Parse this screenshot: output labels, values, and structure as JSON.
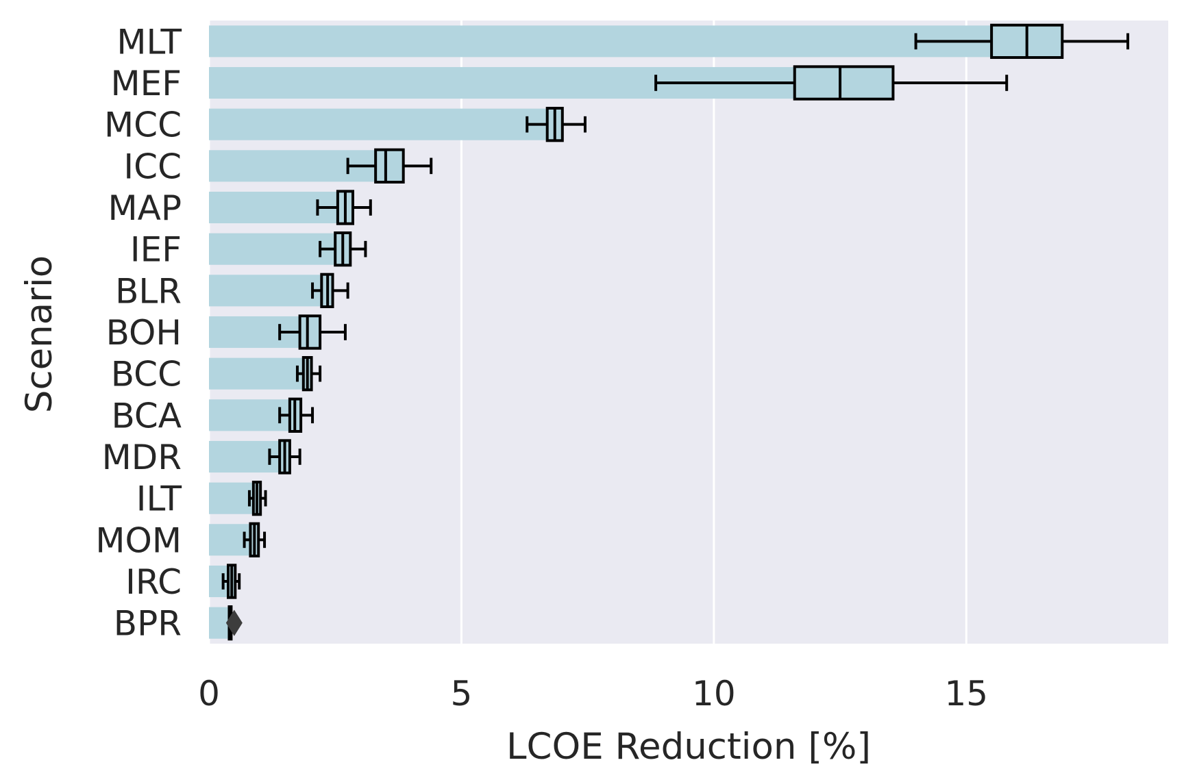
{
  "chart_data": {
    "type": "bar",
    "orientation": "horizontal",
    "categories": [
      "MLT",
      "MEF",
      "MCC",
      "ICC",
      "MAP",
      "IEF",
      "BLR",
      "BOH",
      "BCC",
      "BCA",
      "MDR",
      "ILT",
      "MOM",
      "IRC",
      "BPR"
    ],
    "values": [
      16.2,
      12.5,
      6.85,
      3.5,
      2.7,
      2.65,
      2.35,
      1.95,
      1.95,
      1.7,
      1.5,
      0.95,
      0.9,
      0.45,
      0.42
    ],
    "boxes": [
      {
        "whisker_low": 14.0,
        "q1": 15.5,
        "median": 16.2,
        "q3": 16.9,
        "whisker_high": 18.2
      },
      {
        "whisker_low": 8.85,
        "q1": 11.6,
        "median": 12.5,
        "q3": 13.55,
        "whisker_high": 15.8
      },
      {
        "whisker_low": 6.3,
        "q1": 6.7,
        "median": 6.85,
        "q3": 7.0,
        "whisker_high": 7.45
      },
      {
        "whisker_low": 2.75,
        "q1": 3.3,
        "median": 3.5,
        "q3": 3.85,
        "whisker_high": 4.4
      },
      {
        "whisker_low": 2.15,
        "q1": 2.55,
        "median": 2.7,
        "q3": 2.85,
        "whisker_high": 3.2
      },
      {
        "whisker_low": 2.2,
        "q1": 2.5,
        "median": 2.65,
        "q3": 2.8,
        "whisker_high": 3.1
      },
      {
        "whisker_low": 2.05,
        "q1": 2.23,
        "median": 2.35,
        "q3": 2.45,
        "whisker_high": 2.75
      },
      {
        "whisker_low": 1.4,
        "q1": 1.8,
        "median": 1.95,
        "q3": 2.2,
        "whisker_high": 2.7
      },
      {
        "whisker_low": 1.75,
        "q1": 1.87,
        "median": 1.95,
        "q3": 2.03,
        "whisker_high": 2.2
      },
      {
        "whisker_low": 1.4,
        "q1": 1.6,
        "median": 1.7,
        "q3": 1.82,
        "whisker_high": 2.05
      },
      {
        "whisker_low": 1.2,
        "q1": 1.4,
        "median": 1.5,
        "q3": 1.6,
        "whisker_high": 1.8
      },
      {
        "whisker_low": 0.8,
        "q1": 0.88,
        "median": 0.95,
        "q3": 1.02,
        "whisker_high": 1.12
      },
      {
        "whisker_low": 0.7,
        "q1": 0.82,
        "median": 0.9,
        "q3": 0.98,
        "whisker_high": 1.1
      },
      {
        "whisker_low": 0.28,
        "q1": 0.38,
        "median": 0.45,
        "q3": 0.52,
        "whisker_high": 0.6
      },
      {
        "whisker_low": 0.4,
        "q1": 0.4,
        "median": 0.42,
        "q3": 0.44,
        "whisker_high": 0.44
      }
    ],
    "outliers": [
      {
        "category": "BPR",
        "value": 0.5
      }
    ],
    "title": "",
    "xlabel": "LCOE Reduction [%]",
    "ylabel": "Scenario",
    "xlim": [
      0,
      19
    ],
    "xticks": [
      0,
      5,
      10,
      15
    ],
    "grid": true,
    "colors": {
      "bar": "#b3d5df",
      "background": "#eaeaf2",
      "grid": "#ffffff",
      "box_edge": "#000000",
      "outlier": "#3d3d3d",
      "text": "#262626"
    }
  }
}
